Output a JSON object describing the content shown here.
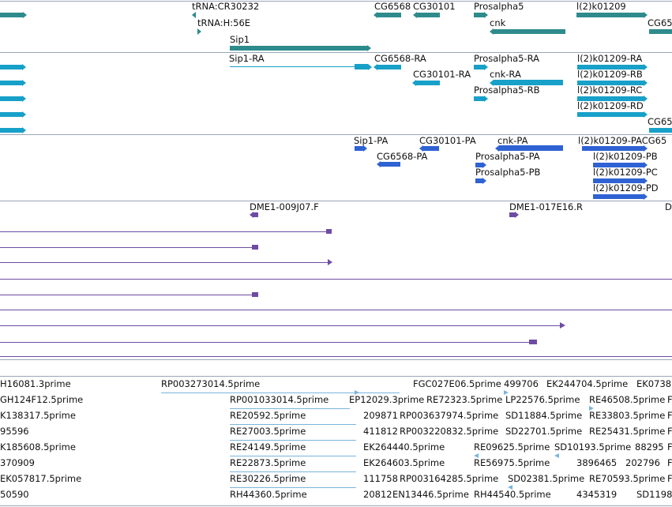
{
  "colors": {
    "gene": "#2e8b8b",
    "transcript": "#17a0c8",
    "protein": "#2f62d3",
    "clone": "#6d4ca3",
    "est": "#7ab5dc",
    "divider": "#9aa6b8"
  },
  "track_gene": {
    "labels": [
      "tRNA:CR30232",
      "tRNA:H:56E",
      "CG6568",
      "CG30101",
      "Prosalpha5",
      "cnk",
      "l(2)k01209",
      "CG65",
      "Sip1"
    ]
  },
  "track_transcript": {
    "labels": [
      "Sip1-RA",
      "CG6568-RA",
      "Prosalpha5-RA",
      "l(2)k01209-RA",
      "CG30101-RA",
      "cnk-RA",
      "l(2)k01209-RB",
      "Prosalpha5-RB",
      "l(2)k01209-RC",
      "l(2)k01209-RD",
      "CG65"
    ]
  },
  "track_protein": {
    "labels": [
      "Sip1-PA",
      "CG30101-PA",
      "cnk-PA",
      "l(2)k01209-PACG65",
      "CG6568-PA",
      "Prosalpha5-PA",
      "l(2)k01209-PB",
      "Prosalpha5-PB",
      "l(2)k01209-PC",
      "l(2)k01209-PD"
    ]
  },
  "track_clone": {
    "labels": [
      "DME1-009J07.F",
      "DME1-017E16.R",
      "D"
    ]
  },
  "track_est": {
    "rows": [
      [
        "H16081.3prime",
        "RP003273014.5prime",
        "FGC027E06.5prime",
        "499706",
        "EK244704.5prime",
        "EK0738"
      ],
      [
        "GH124F12.5prime",
        "RP001033014.5prime",
        "EP12029.3prime",
        "RE72323.5prime",
        "LP22576.5prime",
        "RE46508.5prime",
        "F"
      ],
      [
        "K138317.5prime",
        "RE20592.5prime",
        "209871",
        "RP003637974.5prime",
        "SD11884.5prime",
        "RE33803.5prime",
        "F"
      ],
      [
        "95596",
        "RE27003.5prime",
        "411812",
        "RP003220832.5prime",
        "SD22701.5prime",
        "RE25431.5prime",
        "F"
      ],
      [
        "K185608.5prime",
        "RE24149.5prime",
        "EK264440.5prime",
        "RE09625.5prime",
        "SD10193.5prime",
        "88295",
        "F"
      ],
      [
        "370909",
        "RE22873.5prime",
        "EK264603.5prime",
        "RE56975.5prime",
        "3896465",
        "202796",
        "F"
      ],
      [
        "EK057817.5prime",
        "RE30226.5prime",
        "111758",
        "RP003164285.5prime",
        "SD02381.5prime",
        "RE70593.5prime",
        "F"
      ],
      [
        "50590",
        "RH44360.5prime",
        "20812",
        "EN13446.5prime",
        "RH44540.5prime",
        "4345319",
        "SD1198"
      ]
    ]
  }
}
